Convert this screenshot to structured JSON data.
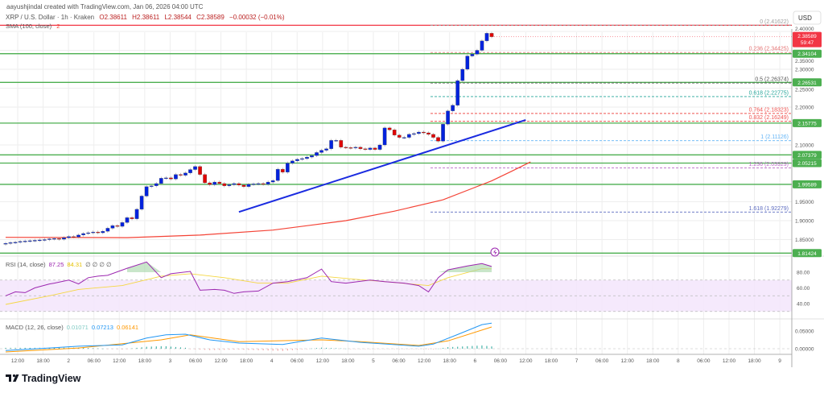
{
  "header": {
    "credit": "aayushjindal created with TradingView.com, Jan 06, 2026 04:00 UTC",
    "symbol": "XRP / U.S. Dollar · 1h · Kraken",
    "open": "O2.38611",
    "high": "H2.38611",
    "low": "L2.38544",
    "close": "C2.38589",
    "change": "−0.00032 (−0.01%)",
    "sma_label": "SMA (100, close)",
    "sma_value": "2"
  },
  "currency_button": "USD",
  "price_axis": [
    "2.40000",
    "2.35000",
    "2.30000",
    "2.25000",
    "2.20000",
    "2.10000",
    "1.95000",
    "1.90000",
    "1.85000"
  ],
  "current_price": {
    "value": "2.38589",
    "countdown": "59:47",
    "price": 2.38589,
    "color": "#f23645"
  },
  "levels": [
    {
      "label": "2.34104",
      "price": 2.34104
    },
    {
      "label": "2.26531",
      "price": 2.26531
    },
    {
      "label": "2.15775",
      "price": 2.15775
    },
    {
      "label": "2.07379",
      "price": 2.07379
    },
    {
      "label": "2.05215",
      "price": 2.05215
    },
    {
      "label": "1.99589",
      "price": 1.99589
    },
    {
      "label": "1.81424",
      "price": 1.81424
    }
  ],
  "level_color": "#4caf50",
  "top_line": {
    "price": 2.41622,
    "color": "#f23645"
  },
  "fib": [
    {
      "label": "0 (2.41622)",
      "price": 2.41622,
      "color": "#9e9e9e"
    },
    {
      "label": "0.236 (2.34425)",
      "price": 2.34425,
      "color": "#e57373"
    },
    {
      "label": "0.5 (2.26374)",
      "price": 2.26374,
      "color": "#555555"
    },
    {
      "label": "0.618 (2.22775)",
      "price": 2.22775,
      "color": "#26a69a"
    },
    {
      "label": "0.764 (2.18323)",
      "price": 2.18323,
      "color": "#ef5350"
    },
    {
      "label": "0.832 (2.16249)",
      "price": 2.16249,
      "color": "#ef5350"
    },
    {
      "label": "1 (2.11126)",
      "price": 2.11126,
      "color": "#64b5f6"
    },
    {
      "label": "1.236 (2.03929)",
      "price": 2.03929,
      "color": "#ba68c8"
    },
    {
      "label": "1.618 (1.92279)",
      "price": 1.92279,
      "color": "#5c6bc0"
    }
  ],
  "candles": {
    "first_open": 1.838,
    "up_color": "#0022dd",
    "down_color": "#e00000",
    "close": [
      1.84,
      1.842,
      1.843,
      1.845,
      1.846,
      1.847,
      1.848,
      1.849,
      1.85,
      1.852,
      1.853,
      1.851,
      1.855,
      1.858,
      1.857,
      1.862,
      1.866,
      1.868,
      1.87,
      1.868,
      1.872,
      1.88,
      1.887,
      1.885,
      1.895,
      1.908,
      1.905,
      1.93,
      1.965,
      1.99,
      1.992,
      1.998,
      2.012,
      2.013,
      2.01,
      2.022,
      2.02,
      2.026,
      2.035,
      2.043,
      2.022,
      2.0,
      1.995,
      2.002,
      1.998,
      1.992,
      1.995,
      1.998,
      1.994,
      1.99,
      1.996,
      1.997,
      1.998,
      1.996,
      2.002,
      2.006,
      2.036,
      2.028,
      2.052,
      2.058,
      2.062,
      2.064,
      2.068,
      2.072,
      2.08,
      2.086,
      2.09,
      2.112,
      2.112,
      2.094,
      2.093,
      2.092,
      2.094,
      2.09,
      2.088,
      2.092,
      2.088,
      2.1,
      2.145,
      2.14,
      2.126,
      2.12,
      2.12,
      2.128,
      2.13,
      2.134,
      2.132,
      2.128,
      2.12,
      2.11,
      2.155,
      2.19,
      2.205,
      2.27,
      2.3,
      2.335,
      2.34,
      2.35,
      2.375,
      2.395,
      2.38589
    ]
  },
  "sma": {
    "color": "#f44336",
    "points": [
      [
        0,
        1.856
      ],
      [
        25,
        1.855
      ],
      [
        40,
        1.862
      ],
      [
        55,
        1.875
      ],
      [
        70,
        1.9
      ],
      [
        80,
        1.925
      ],
      [
        90,
        1.955
      ],
      [
        96,
        1.985
      ],
      [
        100,
        2.005
      ],
      [
        104,
        2.03
      ],
      [
        108,
        2.055
      ]
    ]
  },
  "trendline": {
    "color": "#1a2be0",
    "from": [
      48,
      1.923
    ],
    "to": [
      107,
      2.166
    ]
  },
  "alert_icon_color": "#9c27b0",
  "rsi": {
    "label": "RSI (14, close)",
    "value": "87.25",
    "ma_value": "84.31",
    "extra": "∅ ∅ ∅ ∅",
    "color": "#9c27b0",
    "ma_color": "#f5d742",
    "axis": [
      "80.00",
      "60.00",
      "40.00"
    ],
    "points": [
      [
        0,
        50
      ],
      [
        2,
        55
      ],
      [
        4,
        54
      ],
      [
        6,
        60
      ],
      [
        9,
        65
      ],
      [
        10,
        66
      ],
      [
        13,
        70
      ],
      [
        15,
        65
      ],
      [
        17,
        73
      ],
      [
        19,
        75
      ],
      [
        21,
        76
      ],
      [
        25,
        85
      ],
      [
        29,
        93
      ],
      [
        32,
        73
      ],
      [
        34,
        78
      ],
      [
        38,
        81
      ],
      [
        40,
        57
      ],
      [
        43,
        58
      ],
      [
        45,
        57
      ],
      [
        47,
        53
      ],
      [
        49,
        55
      ],
      [
        52,
        56
      ],
      [
        55,
        66
      ],
      [
        58,
        68
      ],
      [
        62,
        73
      ],
      [
        65,
        84
      ],
      [
        67,
        68
      ],
      [
        70,
        66
      ],
      [
        75,
        70
      ],
      [
        78,
        68
      ],
      [
        82,
        66
      ],
      [
        85,
        63
      ],
      [
        87,
        55
      ],
      [
        89,
        73
      ],
      [
        91,
        83
      ],
      [
        95,
        88
      ],
      [
        98,
        91
      ],
      [
        100,
        87.25
      ]
    ],
    "ma_points": [
      [
        0,
        39
      ],
      [
        9,
        50
      ],
      [
        15,
        58
      ],
      [
        24,
        63
      ],
      [
        32,
        75
      ],
      [
        38,
        78
      ],
      [
        45,
        73
      ],
      [
        52,
        66
      ],
      [
        58,
        66
      ],
      [
        65,
        75
      ],
      [
        72,
        71
      ],
      [
        78,
        68
      ],
      [
        87,
        63
      ],
      [
        91,
        73
      ],
      [
        98,
        84.5
      ],
      [
        100,
        84.31
      ]
    ]
  },
  "macd": {
    "label": "MACD (12, 26, close)",
    "hist_value": "0.01071",
    "macd_value": "0.07213",
    "signal_value": "0.06141",
    "macd_color": "#2196f3",
    "signal_color": "#ff9800",
    "hist_up": "#26a69a",
    "hist_down": "#ef9a9a",
    "axis": [
      "0.05000",
      "0.00000"
    ],
    "macd_points": [
      [
        0,
        -0.005
      ],
      [
        9,
        0.002
      ],
      [
        15,
        0.007
      ],
      [
        24,
        0.011
      ],
      [
        29,
        0.03
      ],
      [
        33,
        0.039
      ],
      [
        37,
        0.041
      ],
      [
        42,
        0.025
      ],
      [
        48,
        0.016
      ],
      [
        57,
        0.012
      ],
      [
        65,
        0.03
      ],
      [
        73,
        0.018
      ],
      [
        85,
        0.007
      ],
      [
        88,
        0.013
      ],
      [
        93,
        0.04
      ],
      [
        98,
        0.068
      ],
      [
        100,
        0.07213
      ]
    ],
    "signal_points": [
      [
        0,
        -0.009
      ],
      [
        15,
        0.002
      ],
      [
        32,
        0.025
      ],
      [
        38,
        0.039
      ],
      [
        48,
        0.02
      ],
      [
        65,
        0.025
      ],
      [
        73,
        0.02
      ],
      [
        85,
        0.009
      ],
      [
        91,
        0.022
      ],
      [
        100,
        0.06141
      ]
    ]
  },
  "time_axis": [
    "12:00",
    "18:00",
    "2",
    "06:00",
    "12:00",
    "18:00",
    "3",
    "06:00",
    "12:00",
    "18:00",
    "4",
    "06:00",
    "12:00",
    "18:00",
    "5",
    "06:00",
    "12:00",
    "18:00",
    "6",
    "06:00",
    "12:00",
    "18:00",
    "7",
    "06:00",
    "12:00",
    "18:00",
    "8",
    "06:00",
    "12:00",
    "18:00",
    "9"
  ],
  "logo": "TradingView"
}
